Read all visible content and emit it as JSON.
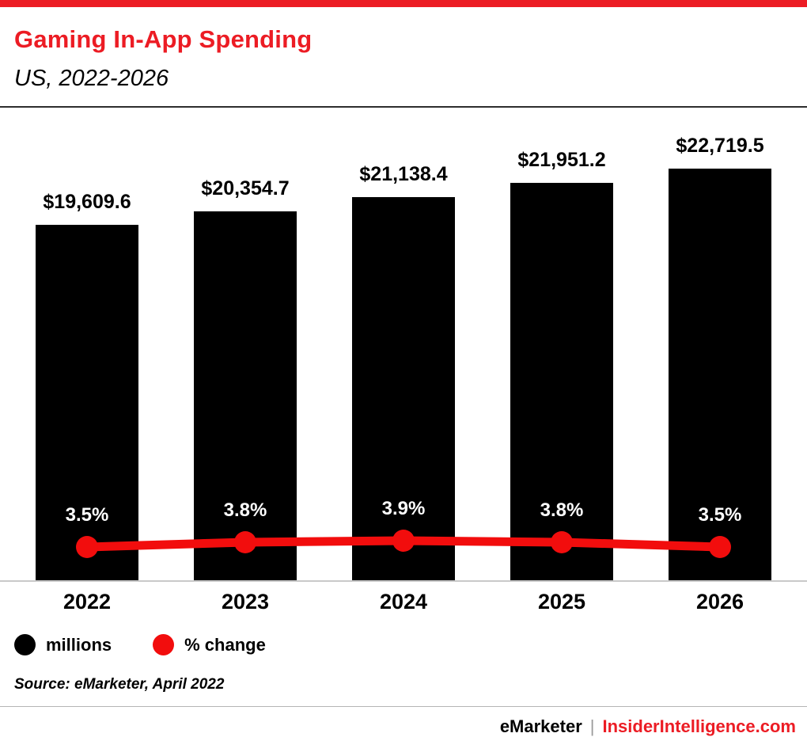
{
  "meta": {
    "accent_red": "#ec1c24"
  },
  "header": {
    "title": "Gaming In-App Spending",
    "subtitle": "US, 2022-2026"
  },
  "chart_data": {
    "type": "bar+line",
    "title": "Gaming In-App Spending",
    "subtitle": "US, 2022-2026",
    "categories": [
      "2022",
      "2023",
      "2024",
      "2025",
      "2026"
    ],
    "series": [
      {
        "name": "millions",
        "kind": "bar",
        "color": "#000000",
        "values": [
          19609.6,
          20354.7,
          21138.4,
          21951.2,
          22719.5
        ],
        "labels": [
          "$19,609.6",
          "$20,354.7",
          "$21,138.4",
          "$21,951.2",
          "$22,719.5"
        ]
      },
      {
        "name": "% change",
        "kind": "line",
        "color": "#f20d0d",
        "values": [
          3.5,
          3.8,
          3.9,
          3.8,
          3.5
        ],
        "labels": [
          "3.5%",
          "3.8%",
          "3.9%",
          "3.8%",
          "3.5%"
        ]
      }
    ],
    "ylim_bar": [
      0,
      22719.5
    ],
    "grid": false,
    "legend_position": "bottom-left"
  },
  "legend": {
    "items": [
      {
        "label": "millions",
        "color": "#000000"
      },
      {
        "label": "% change",
        "color": "#f20d0d"
      }
    ]
  },
  "source": "Source: eMarketer, April 2022",
  "footer": {
    "brand": "eMarketer",
    "separator": "|",
    "site": "InsiderIntelligence.com"
  }
}
